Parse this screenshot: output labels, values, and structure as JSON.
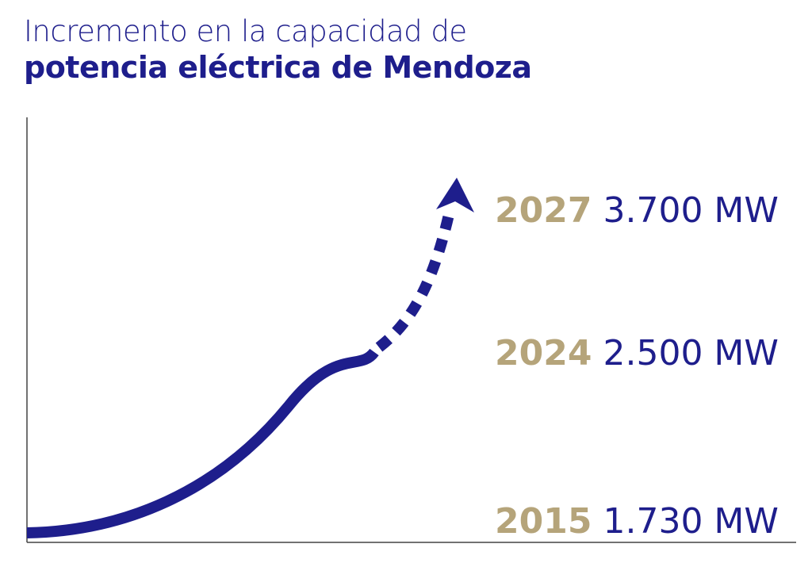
{
  "title": {
    "line1": "Incremento en la capacidad de",
    "line2": "potencia eléctrica de Mendoza"
  },
  "colors": {
    "navy": "#1e1e8c",
    "gold": "#b5a47a",
    "axis": "#444444"
  },
  "chart_data": {
    "type": "line",
    "title": "Incremento en la capacidad de potencia eléctrica de Mendoza",
    "xlabel": "",
    "ylabel": "",
    "grid": false,
    "legend": "none",
    "ylim": [
      1730,
      3700
    ],
    "series": [
      {
        "name": "",
        "style": "solid",
        "points": [
          {
            "year": 2015,
            "mw": 1730
          },
          {
            "year": 2024,
            "mw": 2500
          }
        ]
      },
      {
        "name": "",
        "style": "dotted-arrow",
        "points": [
          {
            "year": 2024,
            "mw": 2500
          },
          {
            "year": 2027,
            "mw": 3700
          }
        ]
      }
    ],
    "labels": [
      {
        "year": "2027",
        "value": "3.700 MW",
        "mw": 3700
      },
      {
        "year": "2024",
        "value": "2.500 MW",
        "mw": 2500
      },
      {
        "year": "2015",
        "value": "1.730 MW",
        "mw": 1730
      }
    ]
  }
}
